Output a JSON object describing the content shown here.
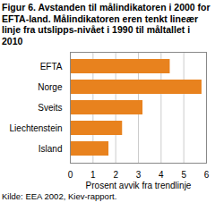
{
  "chart_data": {
    "type": "bar",
    "orientation": "horizontal",
    "title": "Figur 6. Avstanden til målindikatoren i 2000 for EFTA-land. Målindikatoren eren tenkt lineær linje fra utslipps-nivået i 1990 til måltallet i 2010",
    "categories": [
      "EFTA",
      "Norge",
      "Sveits",
      "Liechtenstein",
      "Island"
    ],
    "values": [
      4.4,
      5.8,
      3.2,
      2.3,
      1.7
    ],
    "color": "#e8821e",
    "xlabel": "Prosent avvik fra trendlinje",
    "xlim": [
      0,
      6
    ],
    "xticks": [
      0,
      1,
      2,
      3,
      4,
      5,
      6
    ],
    "grid": true,
    "source": "Kilde: EEA 2002, Kiev-rapport."
  }
}
